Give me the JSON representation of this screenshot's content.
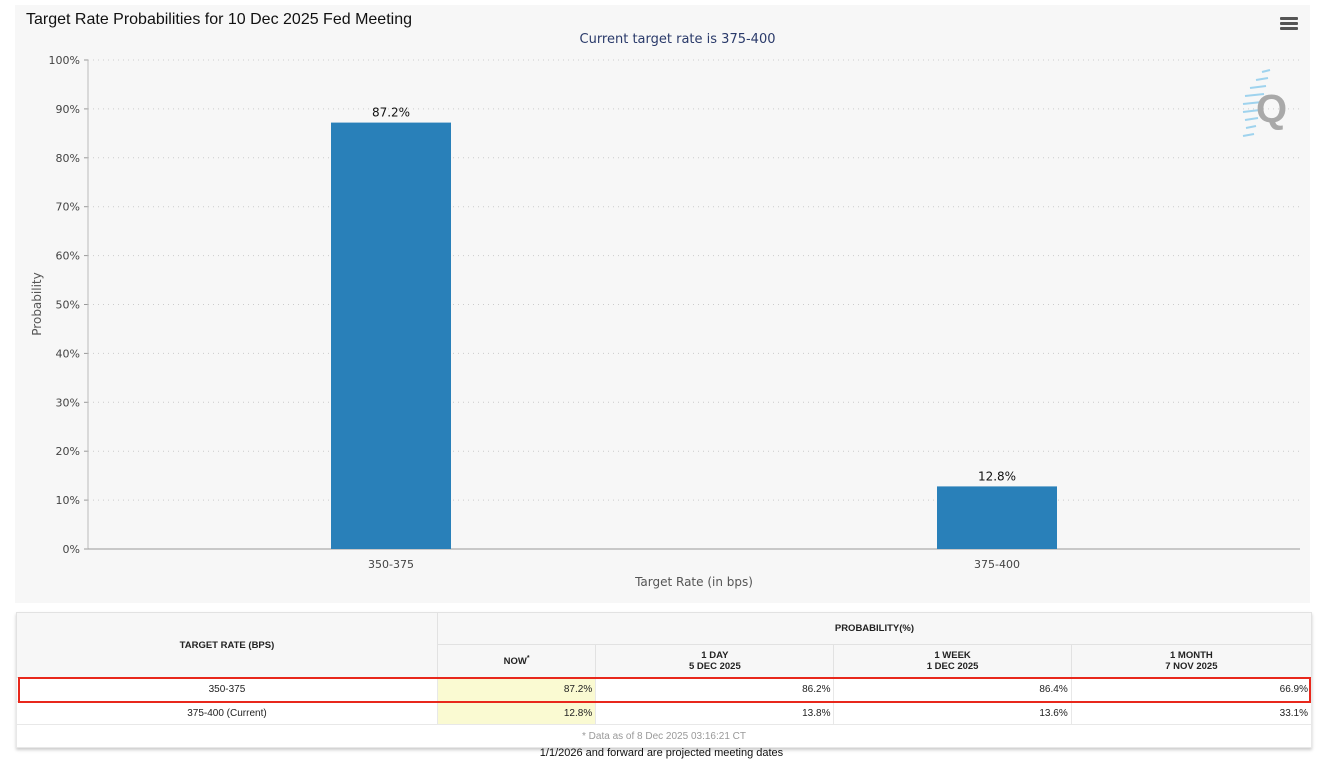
{
  "chart_data": {
    "type": "bar",
    "title": "Target Rate Probabilities for 10 Dec 2025 Fed Meeting",
    "subtitle": "Current target rate is 375-400",
    "categories": [
      "350-375",
      "375-400"
    ],
    "values": [
      87.2,
      12.8
    ],
    "data_labels": [
      "87.2%",
      "12.8%"
    ],
    "xlabel": "Target Rate (in bps)",
    "ylabel": "Probability",
    "ylim": [
      0,
      100
    ],
    "yticks": [
      "0%",
      "10%",
      "20%",
      "30%",
      "40%",
      "50%",
      "60%",
      "70%",
      "80%",
      "90%",
      "100%"
    ],
    "grid": true,
    "bar_color": "#2980b9"
  },
  "table": {
    "rate_header": "TARGET RATE (BPS)",
    "prob_header": "PROBABILITY(%)",
    "columns": [
      {
        "line1": "NOW",
        "sup": "*",
        "line2": ""
      },
      {
        "line1": "1 DAY",
        "line2": "5 DEC 2025"
      },
      {
        "line1": "1 WEEK",
        "line2": "1 DEC 2025"
      },
      {
        "line1": "1 MONTH",
        "line2": "7 NOV 2025"
      }
    ],
    "rows": [
      {
        "rate": "350-375",
        "values": [
          "87.2%",
          "86.2%",
          "86.4%",
          "66.9%"
        ],
        "highlighted": true
      },
      {
        "rate": "375-400 (Current)",
        "values": [
          "12.8%",
          "13.8%",
          "13.6%",
          "33.1%"
        ]
      }
    ],
    "data_note": "* Data as of 8 Dec 2025 03:16:21 CT"
  },
  "footnote": "1/1/2026 and forward are projected meeting dates",
  "icons": {
    "menu": "hamburger-menu-icon",
    "watermark": "q-logo-watermark"
  }
}
